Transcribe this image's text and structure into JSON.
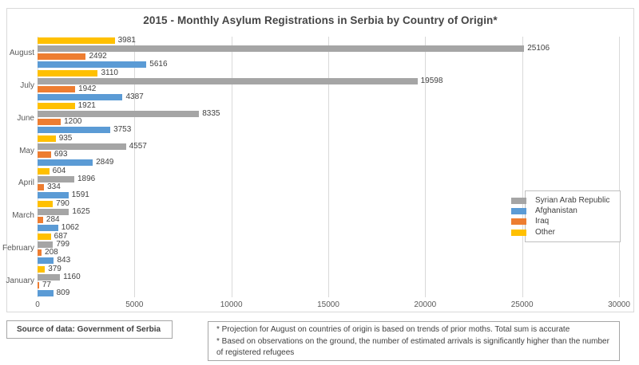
{
  "title": "2015 - Monthly Asylum Registrations in Serbia by Country of Origin*",
  "chart_data": {
    "type": "bar",
    "orientation": "horizontal",
    "title": "2015 - Monthly Asylum Registrations in Serbia by Country of Origin*",
    "categories": [
      "August",
      "July",
      "June",
      "May",
      "April",
      "March",
      "February",
      "January"
    ],
    "series": [
      {
        "name": "Other",
        "color": "#FFC000",
        "values": [
          3981,
          3110,
          1921,
          935,
          604,
          790,
          687,
          379
        ]
      },
      {
        "name": "Syrian Arab Republic",
        "color": "#A5A5A5",
        "values": [
          25106,
          19598,
          8335,
          4557,
          1896,
          1625,
          799,
          1160
        ]
      },
      {
        "name": "Iraq",
        "color": "#ED7D31",
        "values": [
          2492,
          1942,
          1200,
          693,
          334,
          284,
          208,
          77
        ]
      },
      {
        "name": "Afghanistan",
        "color": "#5B9BD5",
        "values": [
          5616,
          4387,
          3753,
          2849,
          1591,
          1062,
          843,
          809
        ]
      }
    ],
    "series_display_order_note": "top-to-bottom within each month group: Other, Syrian Arab Republic, Iraq, Afghanistan",
    "legend": [
      {
        "label": "Syrian Arab Republic",
        "color": "#A5A5A5"
      },
      {
        "label": "Afghanistan",
        "color": "#5B9BD5"
      },
      {
        "label": "Iraq",
        "color": "#ED7D31"
      },
      {
        "label": "Other",
        "color": "#FFC000"
      }
    ],
    "legend_position": "right",
    "x_ticks": [
      0,
      5000,
      10000,
      15000,
      20000,
      25000,
      30000
    ],
    "xlim": [
      0,
      30000
    ],
    "grid": true,
    "data_labels": true,
    "xlabel": "",
    "ylabel": ""
  },
  "source_box": {
    "text": "Source of data: Government of Serbia"
  },
  "footnotes": {
    "line1": "* Projection for August on countries of origin is based on trends of prior moths. Total sum is accurate",
    "line2": "* Based on observations on the ground, the number of estimated arrivals is significantly higher than the number of registered refugees"
  },
  "colors": {
    "gridline": "#D9D9D9",
    "chart_border": "#D9D9D9",
    "box_border": "#A6A6A6",
    "text_dark": "#404040",
    "axis_text": "#595959"
  }
}
